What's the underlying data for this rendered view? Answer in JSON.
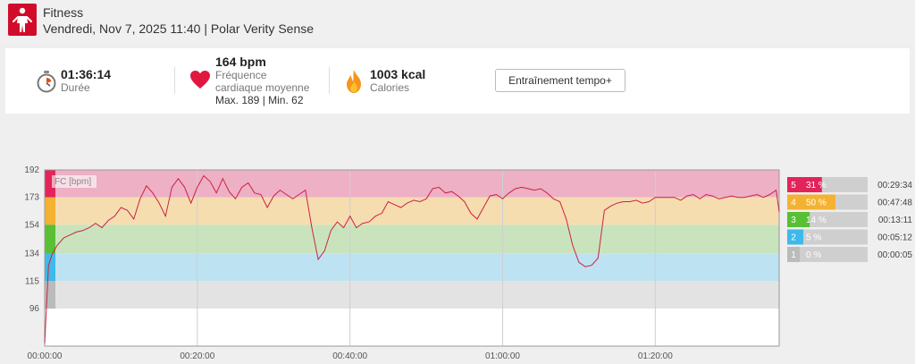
{
  "header": {
    "sport": "Fitness",
    "subtitle": "Vendredi, Nov 7, 2025 11:40 | Polar Verity Sense",
    "icon": "fitness-person-icon",
    "icon_color": "#d10c2b"
  },
  "summary": {
    "duration": {
      "value": "01:36:14",
      "label": "Durée",
      "icon": "stopwatch-icon"
    },
    "heart_rate": {
      "value": "164 bpm",
      "label_line1": "Fréquence",
      "label_line2": "cardiaque moyenne",
      "minmax": "Max. 189  |  Min. 62",
      "icon": "heart-icon"
    },
    "calories": {
      "value": "1003 kcal",
      "label": "Calories",
      "icon": "flame-icon"
    },
    "button_label": "Entraînement tempo+"
  },
  "chart_data": {
    "type": "line",
    "legend_label": "FC [bpm]",
    "y_ticks": [
      96,
      115,
      134,
      154,
      173,
      192
    ],
    "ylim": [
      70,
      192
    ],
    "xlim_seconds": [
      0,
      5774
    ],
    "x_ticks": [
      "00:00:00",
      "00:20:00",
      "00:40:00",
      "01:00:00",
      "01:20:00"
    ],
    "x_tick_seconds": [
      0,
      1200,
      2400,
      3600,
      4800
    ],
    "line_color": "#cc2244",
    "zones": [
      {
        "zone": "5",
        "min": 173,
        "max": 192,
        "color": "#e3245b",
        "band": "#edb0c5",
        "percent": 31,
        "percent_label": "31 %",
        "time": "00:29:34"
      },
      {
        "zone": "4",
        "min": 154,
        "max": 173,
        "color": "#f4b233",
        "band": "#f5ddb0",
        "percent": 50,
        "percent_label": "50 %",
        "time": "00:47:48"
      },
      {
        "zone": "3",
        "min": 134,
        "max": 154,
        "color": "#59bf35",
        "band": "#c9e4bd",
        "percent": 14,
        "percent_label": "14 %",
        "time": "00:13:11"
      },
      {
        "zone": "2",
        "min": 115,
        "max": 134,
        "color": "#3fb9ea",
        "band": "#bde2f1",
        "percent": 5,
        "percent_label": "5 %",
        "time": "00:05:12"
      },
      {
        "zone": "1",
        "min": 96,
        "max": 115,
        "color": "#bbbbbb",
        "band": "#e3e3e3",
        "percent": 0,
        "percent_label": "0 %",
        "time": "00:00:05"
      }
    ],
    "series": [
      {
        "x": [
          0,
          30,
          60,
          100,
          150,
          200,
          250,
          300,
          350,
          400,
          450,
          500,
          550,
          600,
          650,
          700,
          750,
          800,
          850,
          900,
          950,
          1000,
          1050,
          1100,
          1150,
          1200,
          1250,
          1300,
          1350,
          1400,
          1450,
          1500,
          1550,
          1600,
          1650,
          1700,
          1750,
          1800,
          1850,
          1900,
          1950,
          2000,
          2050,
          2100,
          2150,
          2200,
          2250,
          2300,
          2350,
          2400,
          2450,
          2500,
          2550,
          2600,
          2650,
          2700,
          2750,
          2800,
          2850,
          2900,
          2950,
          3000,
          3050,
          3100,
          3150,
          3200,
          3250,
          3300,
          3350,
          3400,
          3450,
          3500,
          3550,
          3600,
          3650,
          3700,
          3750,
          3800,
          3850,
          3900,
          3950,
          4000,
          4050,
          4100,
          4150,
          4200,
          4250,
          4300,
          4350,
          4400,
          4450,
          4500,
          4550,
          4600,
          4650,
          4700,
          4750,
          4800,
          4850,
          4900,
          4950,
          5000,
          5050,
          5100,
          5150,
          5200,
          5250,
          5300,
          5350,
          5400,
          5450,
          5500,
          5550,
          5600,
          5650,
          5700,
          5750,
          5774
        ],
        "y": [
          72,
          126,
          134,
          140,
          145,
          147,
          149,
          150,
          152,
          155,
          152,
          157,
          160,
          166,
          164,
          158,
          172,
          181,
          176,
          169,
          160,
          180,
          186,
          180,
          169,
          180,
          188,
          184,
          176,
          186,
          177,
          172,
          180,
          183,
          176,
          175,
          166,
          174,
          178,
          175,
          172,
          175,
          178,
          152,
          130,
          136,
          150,
          156,
          152,
          160,
          152,
          155,
          156,
          160,
          162,
          170,
          168,
          166,
          169,
          171,
          170,
          172,
          179,
          180,
          176,
          177,
          174,
          170,
          162,
          158,
          166,
          174,
          175,
          172,
          176,
          179,
          180,
          179,
          178,
          179,
          176,
          172,
          170,
          158,
          140,
          128,
          125,
          126,
          131,
          164,
          167,
          169,
          170,
          170,
          171,
          169,
          170,
          173,
          173,
          173,
          173,
          171,
          174,
          175,
          172,
          175,
          174,
          172,
          173,
          174,
          173,
          173,
          174,
          175,
          173,
          175,
          178,
          163
        ]
      }
    ]
  }
}
